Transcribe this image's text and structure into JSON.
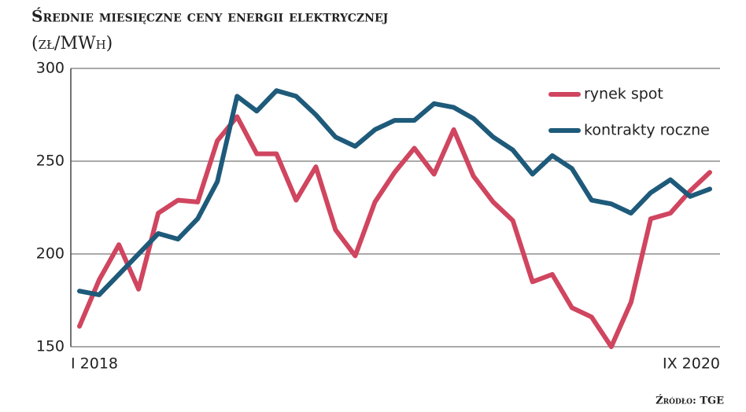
{
  "chart_data": {
    "type": "line",
    "title": "Średnie miesięczne ceny energii elektrycznej",
    "subtitle": "(zł/MWh)",
    "source": "Źródło: TGE",
    "categories": [
      "I 2018",
      null,
      null,
      null,
      null,
      null,
      null,
      null,
      null,
      null,
      null,
      null,
      null,
      null,
      null,
      null,
      null,
      null,
      null,
      null,
      null,
      null,
      null,
      null,
      null,
      null,
      null,
      null,
      null,
      null,
      null,
      null,
      "IX 2020"
    ],
    "series": [
      {
        "name": "rynek spot",
        "color": "#d0455f",
        "values": [
          161,
          186,
          205,
          181,
          222,
          229,
          228,
          261,
          274,
          254,
          254,
          229,
          247,
          213,
          199,
          228,
          244,
          257,
          243,
          267,
          242,
          228,
          218,
          185,
          189,
          171,
          166,
          150,
          174,
          219,
          222,
          234,
          244
        ]
      },
      {
        "name": "kontrakty roczne",
        "color": "#1e5a7a",
        "values": [
          180,
          178,
          189,
          200,
          211,
          208,
          219,
          239,
          285,
          277,
          288,
          285,
          275,
          263,
          258,
          267,
          272,
          272,
          281,
          279,
          273,
          263,
          256,
          243,
          253,
          246,
          229,
          227,
          222,
          233,
          240,
          231,
          235
        ]
      }
    ],
    "ylim": [
      150,
      300
    ],
    "yticks": [
      150,
      200,
      250,
      300
    ],
    "grid": true,
    "legend": "top-right"
  }
}
